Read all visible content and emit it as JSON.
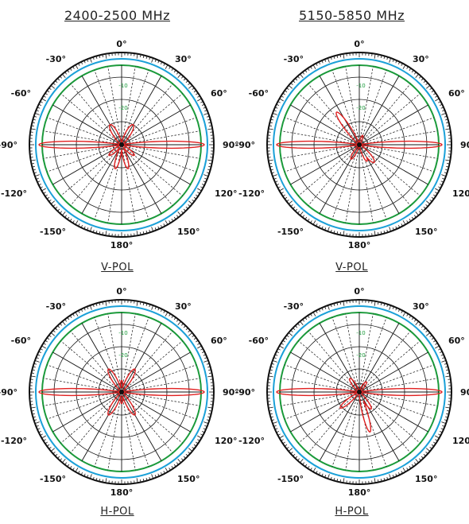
{
  "columns": [
    {
      "title": "2400-2500 MHz"
    },
    {
      "title": "5150-5850 MHz"
    }
  ],
  "rows": [
    {
      "label": "V-POL"
    },
    {
      "label": "H-POL"
    }
  ],
  "angle_labels": [
    "0°",
    "30°",
    "60°",
    "90°",
    "120°",
    "150°",
    "180°",
    "-150°",
    "-120°",
    "-90°",
    "-60°",
    "-30°"
  ],
  "radial_labels": [
    "-10",
    "-20"
  ],
  "colors": {
    "measured": "#e02020",
    "ring_outer": "#111111",
    "ring_blue": "#1aa0d8",
    "ring_green": "#1a9a3a",
    "grid": "#111111"
  },
  "chart_data": [
    {
      "type": "polar",
      "band": "2400-2500 MHz",
      "polarization": "V-POL",
      "r_axis": {
        "unit": "dB",
        "tick_labels": [
          "-10",
          "-20"
        ]
      },
      "theta_ticks_deg": [
        0,
        30,
        60,
        90,
        120,
        150,
        180,
        -150,
        -120,
        -90,
        -60,
        -30
      ],
      "series": [
        {
          "color": "#e02020",
          "lobes": [
            {
              "theta": 90,
              "gain": 1.0,
              "width": 4
            },
            {
              "theta": -90,
              "gain": 1.0,
              "width": 4
            },
            {
              "theta": -30,
              "gain": 0.28,
              "width": 11
            },
            {
              "theta": 30,
              "gain": 0.28,
              "width": 11
            },
            {
              "theta": 165,
              "gain": 0.3,
              "width": 8
            },
            {
              "theta": -165,
              "gain": 0.3,
              "width": 8
            },
            {
              "theta": 130,
              "gain": 0.2,
              "width": 9
            },
            {
              "theta": -130,
              "gain": 0.2,
              "width": 9
            }
          ]
        }
      ]
    },
    {
      "type": "polar",
      "band": "5150-5850 MHz",
      "polarization": "V-POL",
      "r_axis": {
        "unit": "dB",
        "tick_labels": [
          "-10",
          "-20"
        ]
      },
      "theta_ticks_deg": [
        0,
        30,
        60,
        90,
        120,
        150,
        180,
        -150,
        -120,
        -90,
        -60,
        -30
      ],
      "series": [
        {
          "color": "#e02020",
          "lobes": [
            {
              "theta": 90,
              "gain": 1.0,
              "width": 4
            },
            {
              "theta": -90,
              "gain": 1.0,
              "width": 4
            },
            {
              "theta": -35,
              "gain": 0.48,
              "width": 7
            },
            {
              "theta": 140,
              "gain": 0.28,
              "width": 10
            },
            {
              "theta": -150,
              "gain": 0.2,
              "width": 9
            },
            {
              "theta": 155,
              "gain": 0.22,
              "width": 8
            },
            {
              "theta": 20,
              "gain": 0.12,
              "width": 10
            }
          ]
        }
      ]
    },
    {
      "type": "polar",
      "band": "2400-2500 MHz",
      "polarization": "H-POL",
      "r_axis": {
        "unit": "dB",
        "tick_labels": [
          "-10",
          "-20"
        ]
      },
      "theta_ticks_deg": [
        0,
        30,
        60,
        90,
        120,
        150,
        180,
        -150,
        -120,
        -90,
        -60,
        -30
      ],
      "series": [
        {
          "color": "#e02020",
          "lobes": [
            {
              "theta": 90,
              "gain": 1.0,
              "width": 4
            },
            {
              "theta": -90,
              "gain": 1.0,
              "width": 4
            },
            {
              "theta": 30,
              "gain": 0.32,
              "width": 9
            },
            {
              "theta": -30,
              "gain": 0.32,
              "width": 9
            },
            {
              "theta": 150,
              "gain": 0.32,
              "width": 9
            },
            {
              "theta": -150,
              "gain": 0.32,
              "width": 9
            },
            {
              "theta": 0,
              "gain": 0.14,
              "width": 9
            },
            {
              "theta": 180,
              "gain": 0.14,
              "width": 9
            }
          ]
        }
      ]
    },
    {
      "type": "polar",
      "band": "5150-5850 MHz",
      "polarization": "H-POL",
      "r_axis": {
        "unit": "dB",
        "tick_labels": [
          "-10",
          "-20"
        ]
      },
      "theta_ticks_deg": [
        0,
        30,
        60,
        90,
        120,
        150,
        180,
        -150,
        -120,
        -90,
        -60,
        -30
      ],
      "series": [
        {
          "color": "#e02020",
          "lobes": [
            {
              "theta": 90,
              "gain": 1.0,
              "width": 4
            },
            {
              "theta": -90,
              "gain": 1.0,
              "width": 4
            },
            {
              "theta": 165,
              "gain": 0.5,
              "width": 6
            },
            {
              "theta": -130,
              "gain": 0.3,
              "width": 8
            },
            {
              "theta": -35,
              "gain": 0.2,
              "width": 10
            },
            {
              "theta": 35,
              "gain": 0.15,
              "width": 10
            },
            {
              "theta": 145,
              "gain": 0.25,
              "width": 8
            }
          ]
        }
      ]
    }
  ]
}
